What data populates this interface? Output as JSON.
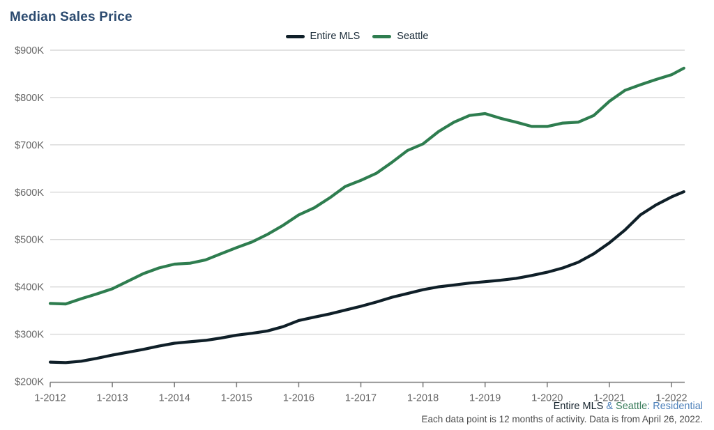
{
  "title": "Median Sales Price",
  "legend": {
    "items": [
      {
        "label": "Entire MLS",
        "color": "#0f1f28"
      },
      {
        "label": "Seattle",
        "color": "#2e7d4f"
      }
    ]
  },
  "footer": {
    "line1_parts": [
      {
        "text": "Entire MLS",
        "color": "#13212b"
      },
      {
        "text": " & ",
        "color": "#4e81ba"
      },
      {
        "text": "Seattle",
        "color": "#3b7d5c"
      },
      {
        "text": ": Residential",
        "color": "#4e81ba"
      }
    ],
    "line2": "Each data point is 12 months of activity. Data is from April 26, 2022."
  },
  "chart_data": {
    "type": "line",
    "title": "Median Sales Price",
    "xlabel": "",
    "ylabel": "",
    "units": "thousands of dollars",
    "xlim": [
      2012,
      2022.25
    ],
    "ylim": [
      200,
      900
    ],
    "grid": "horizontal",
    "legend_position": "top-center",
    "y_ticks": [
      200,
      300,
      400,
      500,
      600,
      700,
      800,
      900
    ],
    "y_tick_labels": [
      "$200K",
      "$300K",
      "$400K",
      "$500K",
      "$600K",
      "$700K",
      "$800K",
      "$900K"
    ],
    "x_ticks": [
      2012,
      2013,
      2014,
      2015,
      2016,
      2017,
      2018,
      2019,
      2020,
      2021,
      2022
    ],
    "x_tick_labels": [
      "1-2012",
      "1-2013",
      "1-2014",
      "1-2015",
      "1-2016",
      "1-2017",
      "1-2018",
      "1-2019",
      "1-2020",
      "1-2021",
      "1-2022"
    ],
    "x": [
      2012,
      2012.25,
      2012.5,
      2012.75,
      2013,
      2013.25,
      2013.5,
      2013.75,
      2014,
      2014.25,
      2014.5,
      2014.75,
      2015,
      2015.25,
      2015.5,
      2015.75,
      2016,
      2016.25,
      2016.5,
      2016.75,
      2017,
      2017.25,
      2017.5,
      2017.75,
      2018,
      2018.25,
      2018.5,
      2018.75,
      2019,
      2019.25,
      2019.5,
      2019.75,
      2020,
      2020.25,
      2020.5,
      2020.75,
      2021,
      2021.25,
      2021.5,
      2021.75,
      2022,
      2022.2
    ],
    "series": [
      {
        "name": "Entire MLS",
        "color": "#0f1f28",
        "values": [
          241,
          240,
          243,
          249,
          256,
          262,
          268,
          275,
          281,
          284,
          287,
          292,
          298,
          302,
          307,
          316,
          329,
          336,
          343,
          351,
          359,
          368,
          378,
          386,
          394,
          400,
          404,
          408,
          411,
          414,
          418,
          424,
          431,
          440,
          452,
          470,
          493,
          520,
          552,
          573,
          590,
          601
        ]
      },
      {
        "name": "Seattle",
        "color": "#2e7d4f",
        "values": [
          365,
          364,
          375,
          385,
          396,
          412,
          428,
          440,
          448,
          450,
          457,
          470,
          483,
          495,
          511,
          530,
          552,
          567,
          588,
          612,
          625,
          640,
          663,
          688,
          702,
          728,
          748,
          762,
          766,
          756,
          748,
          739,
          739,
          746,
          748,
          762,
          792,
          815,
          827,
          838,
          848,
          862
        ]
      }
    ]
  }
}
